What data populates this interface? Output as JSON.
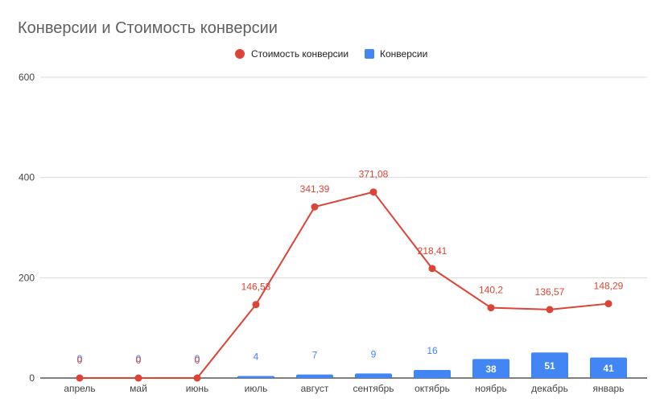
{
  "chart_data": {
    "type": "bar",
    "title": "Конверсии и Стоимость конверсии",
    "categories": [
      "апрель",
      "май",
      "июнь",
      "июль",
      "август",
      "сентябрь",
      "октябрь",
      "ноябрь",
      "декабрь",
      "январь"
    ],
    "series": [
      {
        "name": "Стоимость конверсии",
        "type": "line",
        "color": "#db4437",
        "values": [
          0,
          0,
          0,
          146.53,
          341.39,
          371.08,
          218.41,
          140.2,
          136.57,
          148.29
        ],
        "labels": [
          "0",
          "0",
          "0",
          "146,53",
          "341,39",
          "371,08",
          "218,41",
          "140,2",
          "136,57",
          "148,29"
        ]
      },
      {
        "name": "Конверсии",
        "type": "bar",
        "color": "#4285f4",
        "values": [
          0,
          0,
          0,
          4,
          7,
          9,
          16,
          38,
          51,
          41
        ],
        "labels": [
          "0",
          "0",
          "0",
          "4",
          "7",
          "9",
          "16",
          "38",
          "51",
          "41"
        ]
      }
    ],
    "ylim": [
      0,
      600
    ],
    "yticks": [
      "0",
      "200",
      "400",
      "600"
    ],
    "grid": true,
    "legend_position": "top-center"
  }
}
